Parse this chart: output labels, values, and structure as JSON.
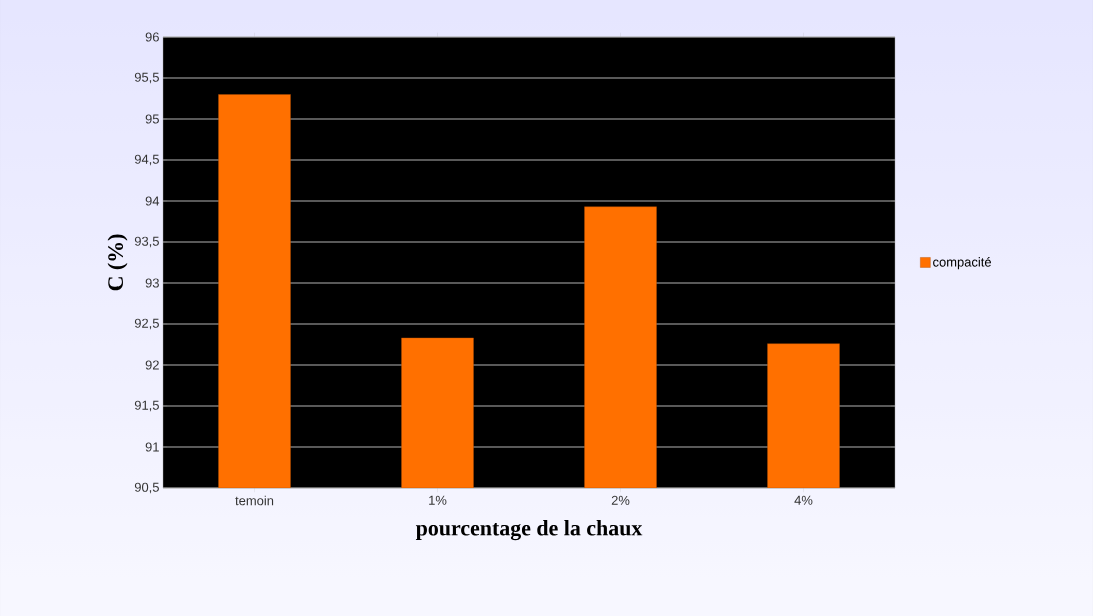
{
  "chart_data": {
    "type": "bar",
    "xlabel": "pourcentage de la chaux",
    "ylabel": "C (%)",
    "categories": [
      "temoin",
      "1%",
      "2%",
      "4%"
    ],
    "series": [
      {
        "name": "compacité",
        "color": "#ff7000",
        "values": [
          95.3,
          92.33,
          93.93,
          92.26
        ]
      }
    ],
    "ylim": [
      90.5,
      96
    ],
    "yticks": [
      {
        "value": 90.5,
        "label": "90,5"
      },
      91,
      {
        "value": 91.5,
        "label": "91,5"
      },
      92,
      {
        "value": 92.5,
        "label": "92,5"
      },
      93,
      {
        "value": 93.5,
        "label": "93,5"
      },
      94,
      {
        "value": 94.5,
        "label": "94,5"
      },
      95,
      {
        "value": 95.5,
        "label": "95,5"
      },
      96
    ],
    "grid": "y",
    "legend": "right"
  }
}
